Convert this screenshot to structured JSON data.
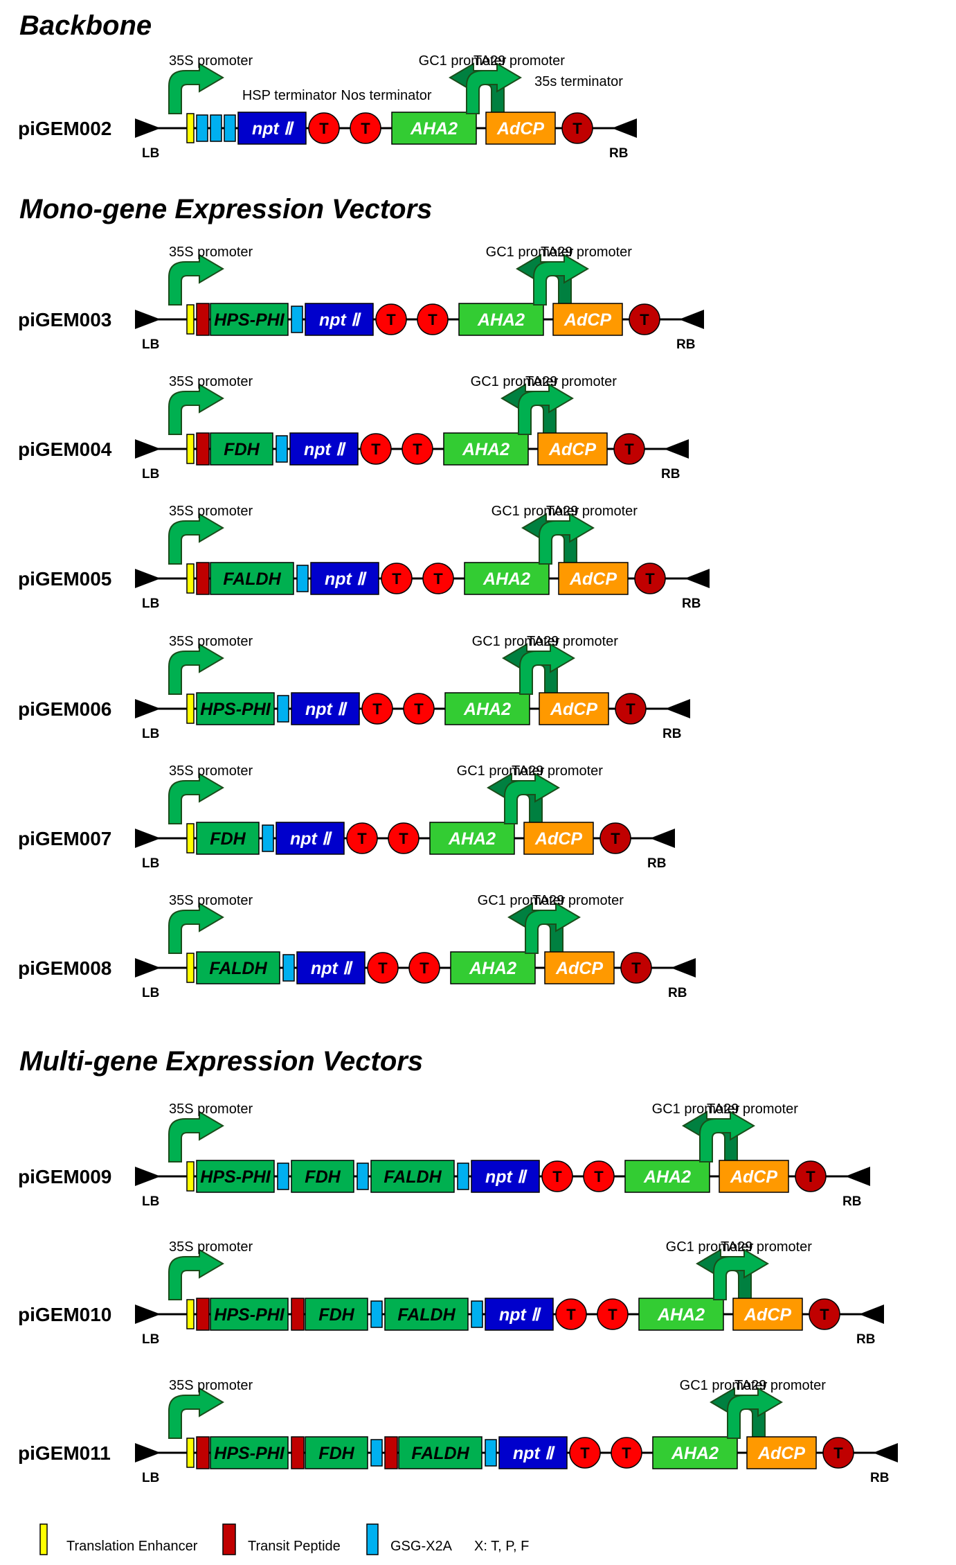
{
  "sections": [
    {
      "title": "Backbone",
      "vectors": [
        {
          "name": "piGEM002",
          "labels": {
            "p35s": "35S promoter",
            "gc1": "GC1 promoter",
            "ta29": "TA29 promoter",
            "hsp": "HSP terminator",
            "nos": "Nos terminator",
            "t35s": "35s terminator"
          },
          "parts": [
            "enhancer",
            "x2a",
            "x2a",
            "x2a",
            "nptII",
            "term",
            "term",
            "aha2",
            "adcp",
            "term"
          ]
        }
      ]
    },
    {
      "title": "Mono-gene Expression Vectors",
      "vectors": [
        {
          "name": "piGEM003",
          "labels": {
            "p35s": "35S promoter",
            "gc1": "GC1 promoter",
            "ta29": "TA29 promoter"
          },
          "parts": [
            "enhancer",
            "transit",
            "HPS-PHI",
            "x2a",
            "nptII",
            "term",
            "term",
            "aha2",
            "adcp",
            "term"
          ]
        },
        {
          "name": "piGEM004",
          "labels": {
            "p35s": "35S promoter",
            "gc1": "GC1 promoter",
            "ta29": "TA29 promoter"
          },
          "parts": [
            "enhancer",
            "transit",
            "FDH",
            "x2a",
            "nptII",
            "term",
            "term",
            "aha2",
            "adcp",
            "term"
          ]
        },
        {
          "name": "piGEM005",
          "labels": {
            "p35s": "35S promoter",
            "gc1": "GC1 promoter",
            "ta29": "TA29 promoter"
          },
          "parts": [
            "enhancer",
            "transit",
            "FALDH",
            "x2a",
            "nptII",
            "term",
            "term",
            "aha2",
            "adcp",
            "term"
          ]
        },
        {
          "name": "piGEM006",
          "labels": {
            "p35s": "35S promoter",
            "gc1": "GC1 promoter",
            "ta29": "TA29 promoter"
          },
          "parts": [
            "enhancer",
            "HPS-PHI",
            "x2a",
            "nptII",
            "term",
            "term",
            "aha2",
            "adcp",
            "term"
          ]
        },
        {
          "name": "piGEM007",
          "labels": {
            "p35s": "35S promoter",
            "gc1": "GC1 promoter",
            "ta29": "TA29 promoter"
          },
          "parts": [
            "enhancer",
            "FDH",
            "x2a",
            "nptII",
            "term",
            "term",
            "aha2",
            "adcp",
            "term"
          ]
        },
        {
          "name": "piGEM008",
          "labels": {
            "p35s": "35S promoter",
            "gc1": "GC1 promoter",
            "ta29": "TA29 promoter"
          },
          "parts": [
            "enhancer",
            "FALDH",
            "x2a",
            "nptII",
            "term",
            "term",
            "aha2",
            "adcp",
            "term"
          ]
        }
      ]
    },
    {
      "title": "Multi-gene Expression Vectors",
      "vectors": [
        {
          "name": "piGEM009",
          "labels": {
            "p35s": "35S promoter",
            "gc1": "GC1 promoter",
            "ta29": "TA29 promoter"
          },
          "parts": [
            "enhancer",
            "HPS-PHI",
            "x2a",
            "FDH",
            "x2a",
            "FALDH",
            "x2a",
            "nptII",
            "term",
            "term",
            "aha2",
            "adcp",
            "term"
          ]
        },
        {
          "name": "piGEM010",
          "labels": {
            "p35s": "35S promoter",
            "gc1": "GC1 promoter",
            "ta29": "TA29 promoter"
          },
          "parts": [
            "enhancer",
            "transit",
            "HPS-PHI",
            "transit",
            "FDH",
            "x2a",
            "FALDH",
            "x2a",
            "nptII",
            "term",
            "term",
            "aha2",
            "adcp",
            "term"
          ]
        },
        {
          "name": "piGEM011",
          "labels": {
            "p35s": "35S promoter",
            "gc1": "GC1 promoter",
            "ta29": "TA29 promoter"
          },
          "parts": [
            "enhancer",
            "transit",
            "HPS-PHI",
            "transit",
            "FDH",
            "x2a",
            "transit",
            "FALDH",
            "x2a",
            "nptII",
            "term",
            "term",
            "aha2",
            "adcp",
            "term"
          ]
        }
      ]
    }
  ],
  "elements": {
    "lb": "LB",
    "rb": "RB",
    "terminator": "T",
    "nptII": "npt Ⅱ",
    "aha2": "AHA2",
    "adcp": "AdCP"
  },
  "legend": [
    {
      "kind": "enhancer",
      "label": "Translation Enhancer"
    },
    {
      "kind": "transit",
      "label": "Transit Peptide"
    },
    {
      "kind": "x2a",
      "label": "GSG-X2A"
    }
  ],
  "legend_note": "X: T, P, F",
  "colors": {
    "enhancer": "#ffff00",
    "transit": "#c00000",
    "x2a": "#00b0f0",
    "gene_green": "#00b050",
    "nptII": "#0000cc",
    "aha2": "#33cc33",
    "adcp": "#ff9900",
    "term": "#ff0000",
    "term_last": "#c00000",
    "arrow_light": "#00b050",
    "arrow_dark": "#008040"
  }
}
